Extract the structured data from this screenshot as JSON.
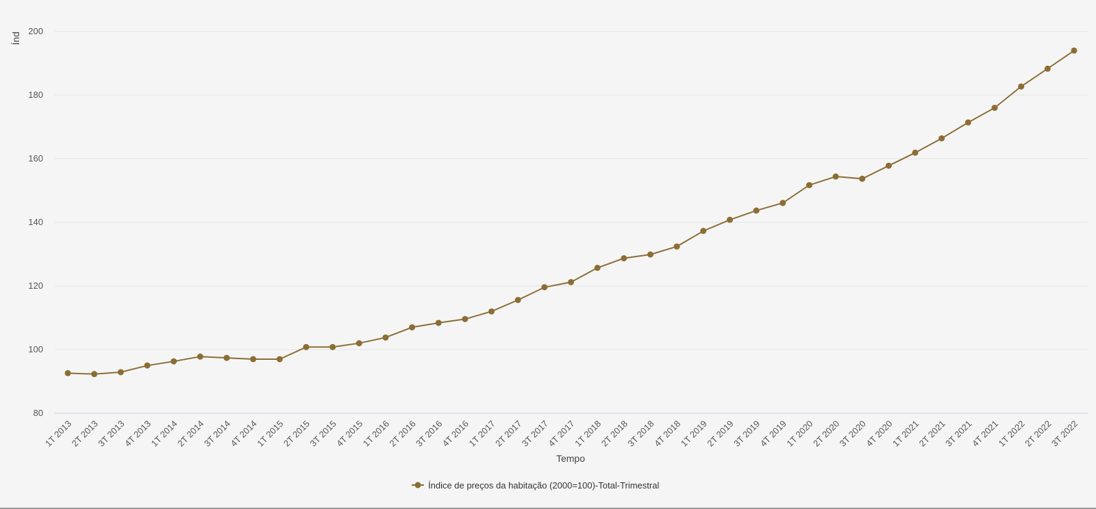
{
  "chart_data": {
    "type": "line",
    "title": "",
    "xlabel": "Tempo",
    "ylabel": "Índ",
    "ylim": [
      80,
      200
    ],
    "yticks": [
      80,
      100,
      120,
      140,
      160,
      180,
      200
    ],
    "grid": true,
    "legend_position": "bottom",
    "categories": [
      "1T 2013",
      "2T 2013",
      "3T 2013",
      "4T 2013",
      "1T 2014",
      "2T 2014",
      "3T 2014",
      "4T 2014",
      "1T 2015",
      "2T 2015",
      "3T 2015",
      "4T 2015",
      "1T 2016",
      "2T 2016",
      "3T 2016",
      "4T 2016",
      "1T 2017",
      "2T 2017",
      "3T 2017",
      "4T 2017",
      "1T 2018",
      "2T 2018",
      "3T 2018",
      "4T 2018",
      "1T 2019",
      "2T 2019",
      "3T 2019",
      "4T 2019",
      "1T 2020",
      "2T 2020",
      "3T 2020",
      "4T 2020",
      "1T 2021",
      "2T 2021",
      "3T 2021",
      "4T 2021",
      "1T 2022",
      "2T 2022",
      "3T 2022"
    ],
    "series": [
      {
        "name": "Índice de preços da habitação (2000=100)-Total-Trimestral",
        "color": "#8c6d35",
        "values": [
          92.6,
          92.3,
          92.9,
          95.0,
          96.3,
          97.8,
          97.4,
          97.0,
          97.0,
          100.8,
          100.8,
          102.0,
          103.8,
          107.0,
          108.4,
          109.6,
          112.0,
          115.6,
          119.6,
          121.2,
          125.7,
          128.7,
          129.9,
          132.4,
          137.3,
          140.8,
          143.7,
          146.1,
          151.7,
          154.4,
          153.7,
          157.8,
          161.9,
          166.4,
          171.4,
          176.0,
          182.7,
          188.3,
          194.0
        ]
      }
    ]
  }
}
